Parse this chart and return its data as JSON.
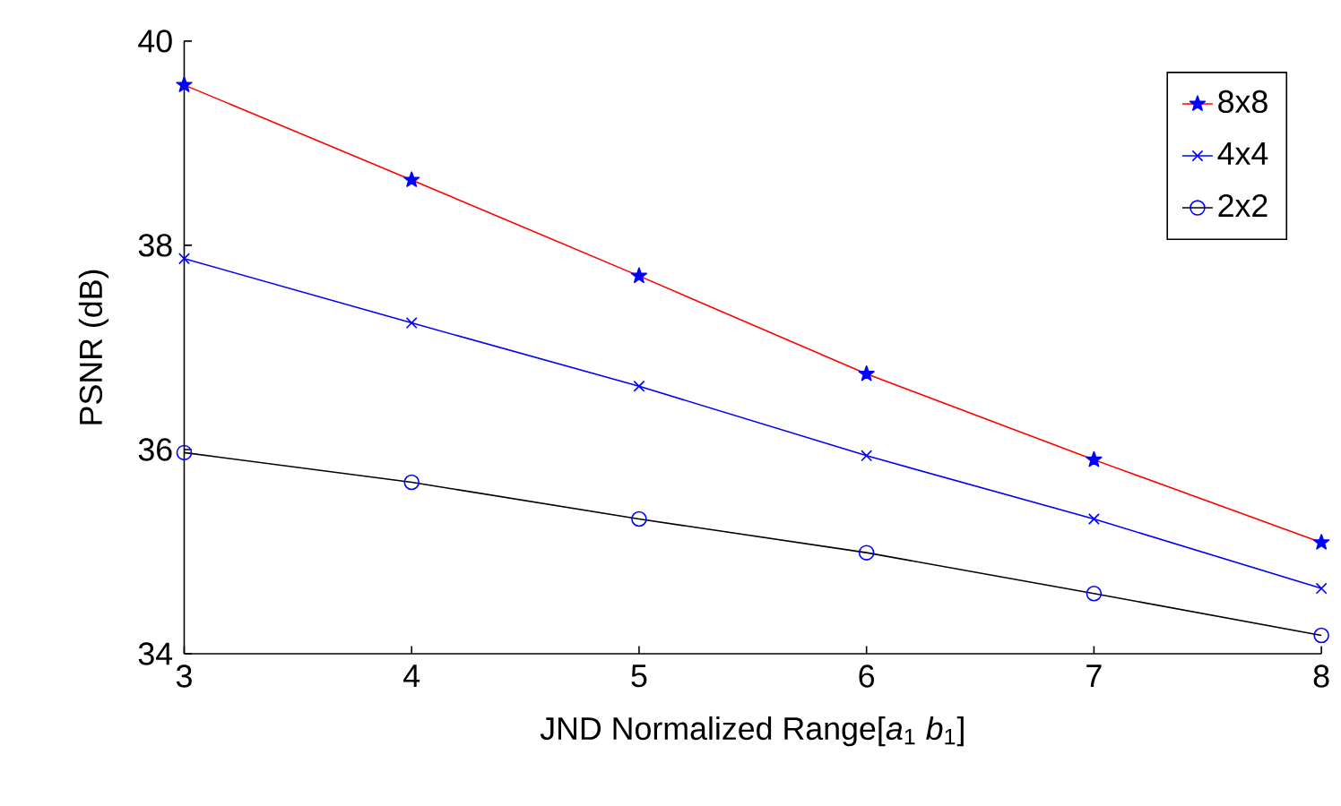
{
  "chart_data": {
    "type": "line",
    "xlabel": "JND Normalized Range[*a*$_{1}$ *b*$_{1}$]",
    "ylabel": "PSNR (dB)",
    "x": [
      3,
      4,
      5,
      6,
      7,
      8
    ],
    "series": [
      {
        "name": "8x8",
        "color": "#ff0000",
        "marker": "star",
        "values": [
          39.57,
          38.64,
          37.7,
          36.74,
          35.9,
          35.09
        ]
      },
      {
        "name": "4x4",
        "color": "#0000ff",
        "marker": "cross",
        "values": [
          37.87,
          37.24,
          36.62,
          35.94,
          35.32,
          34.64
        ]
      },
      {
        "name": "2x2",
        "color": "#000000",
        "marker": "circle",
        "values": [
          35.97,
          35.68,
          35.32,
          34.99,
          34.59,
          34.18
        ]
      }
    ],
    "xlim": [
      3,
      8
    ],
    "ylim": [
      34,
      40
    ],
    "xticks": [
      3,
      4,
      5,
      6,
      7,
      8
    ],
    "yticks": [
      34,
      36,
      38,
      40
    ],
    "legend": "top right",
    "grid": false,
    "line_style": "solid"
  }
}
